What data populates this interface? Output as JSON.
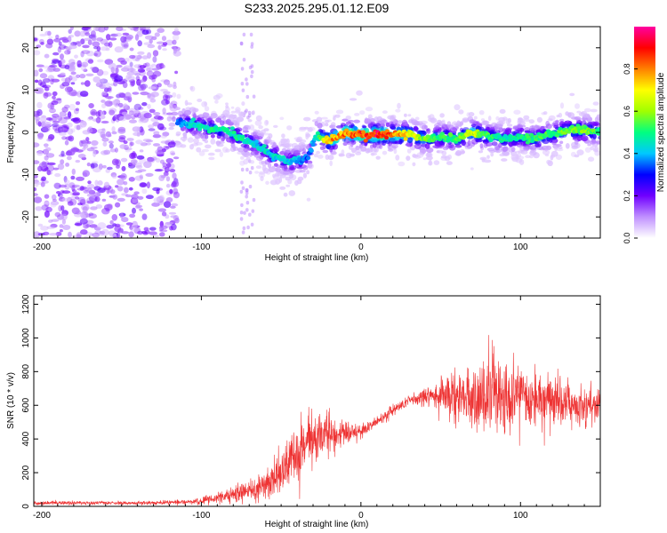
{
  "chart_data": [
    {
      "type": "scatter",
      "variant": "spectrogram",
      "title": "S233.2025.295.01.12.E09",
      "xlabel": "Height of straight line (km)",
      "ylabel": "Frequency (Hz)",
      "xlim": [
        -205,
        150
      ],
      "ylim": [
        -25,
        25
      ],
      "xticks": [
        -200,
        -100,
        0,
        100
      ],
      "yticks": [
        -20,
        -10,
        0,
        10,
        20
      ],
      "colorbar": {
        "label": "Normalized spectral amplitude",
        "range": [
          0,
          1
        ],
        "ticks": [
          "0.0",
          "0.2",
          "0.4",
          "0.6",
          "0.8"
        ],
        "tick_values": [
          0,
          0.2,
          0.4,
          0.6,
          0.8
        ],
        "colors": [
          "#ffffff",
          "#c090ff",
          "#7000ff",
          "#0000ff",
          "#00c8ff",
          "#00ff80",
          "#a0ff00",
          "#ffff00",
          "#ff8000",
          "#ff0000",
          "#ff00a0"
        ]
      },
      "noise_region": {
        "x_range": [
          -205,
          -115
        ],
        "amplitude": 0.15
      },
      "ridge": [
        {
          "x": -115,
          "y": 2.5,
          "amp": 0.35
        },
        {
          "x": -105,
          "y": 2.0,
          "amp": 0.45
        },
        {
          "x": -95,
          "y": 1.0,
          "amp": 0.5
        },
        {
          "x": -85,
          "y": 0.5,
          "amp": 0.5
        },
        {
          "x": -75,
          "y": -1.5,
          "amp": 0.5
        },
        {
          "x": -65,
          "y": -3.0,
          "amp": 0.45
        },
        {
          "x": -55,
          "y": -5.5,
          "amp": 0.45
        },
        {
          "x": -45,
          "y": -7.0,
          "amp": 0.45
        },
        {
          "x": -38,
          "y": -6.5,
          "amp": 0.4
        },
        {
          "x": -33,
          "y": -6.0,
          "amp": 0.35
        },
        {
          "x": -28,
          "y": -0.5,
          "amp": 0.45
        },
        {
          "x": -20,
          "y": -2.0,
          "amp": 0.8
        },
        {
          "x": -10,
          "y": 0.0,
          "amp": 0.85
        },
        {
          "x": 0,
          "y": -0.5,
          "amp": 0.9
        },
        {
          "x": 10,
          "y": -0.5,
          "amp": 0.95
        },
        {
          "x": 20,
          "y": -0.5,
          "amp": 0.85
        },
        {
          "x": 30,
          "y": -0.5,
          "amp": 0.75
        },
        {
          "x": 40,
          "y": -1.5,
          "amp": 0.6
        },
        {
          "x": 50,
          "y": -1.0,
          "amp": 0.55
        },
        {
          "x": 60,
          "y": -1.5,
          "amp": 0.55
        },
        {
          "x": 70,
          "y": 0.0,
          "amp": 0.7
        },
        {
          "x": 80,
          "y": -1.0,
          "amp": 0.55
        },
        {
          "x": 90,
          "y": -1.5,
          "amp": 0.5
        },
        {
          "x": 100,
          "y": -1.0,
          "amp": 0.5
        },
        {
          "x": 110,
          "y": -1.5,
          "amp": 0.55
        },
        {
          "x": 120,
          "y": -0.5,
          "amp": 0.55
        },
        {
          "x": 130,
          "y": 0.5,
          "amp": 0.6
        },
        {
          "x": 140,
          "y": 0.5,
          "amp": 0.6
        },
        {
          "x": 150,
          "y": 0.0,
          "amp": 0.55
        }
      ]
    },
    {
      "type": "line",
      "title": "",
      "xlabel": "Height of straight line (km)",
      "ylabel": "SNR (10 * v/v)",
      "xlim": [
        -205,
        150
      ],
      "ylim": [
        0,
        1250
      ],
      "xticks": [
        -200,
        -100,
        0,
        100
      ],
      "yticks": [
        0,
        200,
        400,
        600,
        800,
        1000,
        1200
      ],
      "line_color": "#ee3333",
      "envelope": {
        "x": [
          -205,
          -130,
          -100,
          -80,
          -65,
          -50,
          -40,
          -30,
          -20,
          -10,
          0,
          10,
          20,
          30,
          45,
          55,
          65,
          75,
          80,
          85,
          90,
          100,
          110,
          120,
          130,
          140,
          150
        ],
        "mean": [
          20,
          20,
          30,
          70,
          100,
          200,
          300,
          400,
          430,
          430,
          450,
          500,
          570,
          630,
          650,
          660,
          640,
          640,
          640,
          650,
          640,
          640,
          630,
          620,
          610,
          600,
          600
        ],
        "spread": [
          10,
          10,
          15,
          40,
          60,
          120,
          160,
          150,
          110,
          70,
          40,
          30,
          30,
          30,
          60,
          100,
          130,
          180,
          260,
          220,
          200,
          160,
          150,
          130,
          120,
          110,
          100
        ]
      }
    }
  ]
}
